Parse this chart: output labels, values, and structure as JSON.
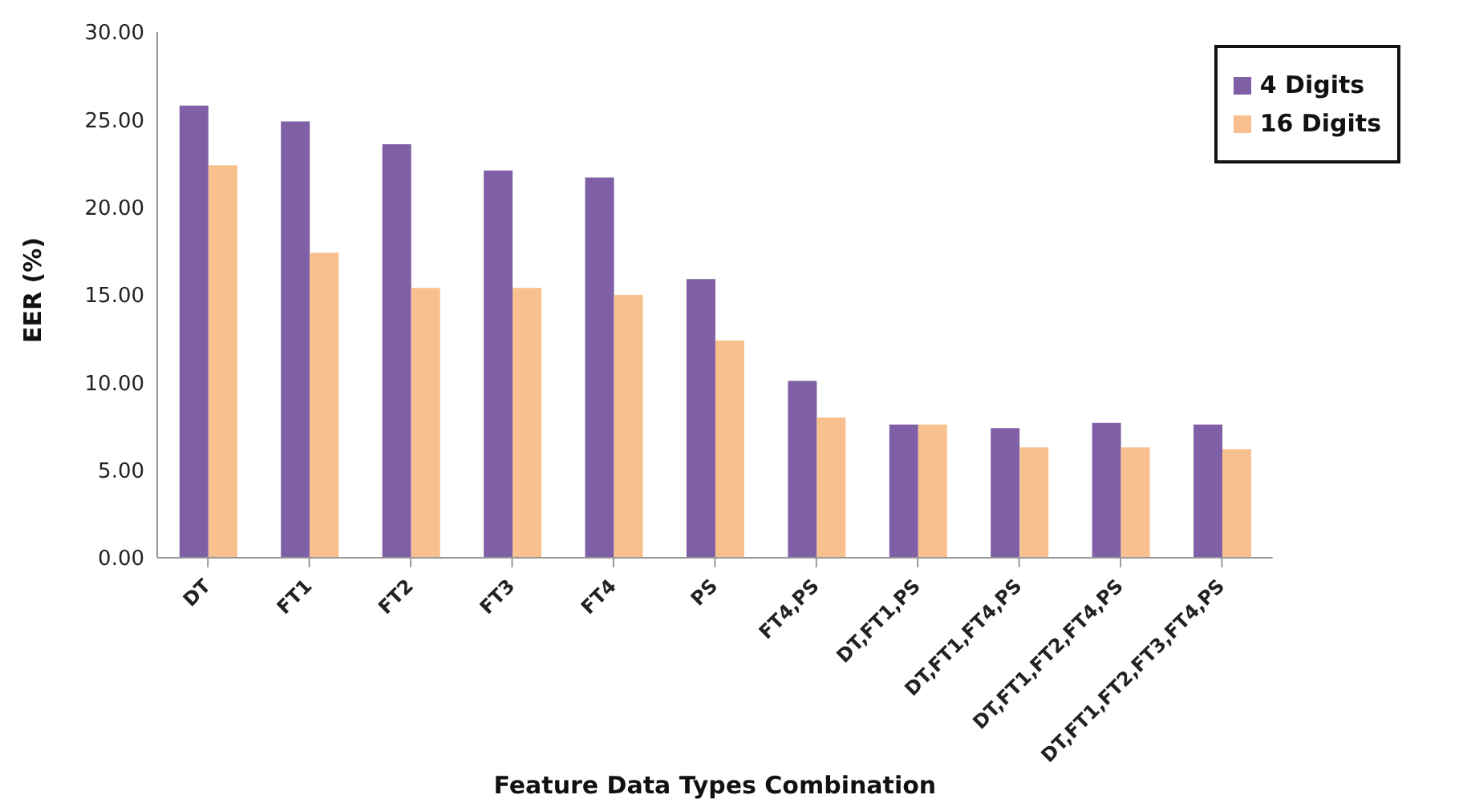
{
  "chart_data": {
    "type": "bar",
    "xlabel": "Feature Data Types Combination",
    "ylabel": "EER (%)",
    "categories": [
      "DT",
      "FT1",
      "FT2",
      "FT3",
      "FT4",
      "PS",
      "FT4,PS",
      "DT,FT1,PS",
      "DT,FT1,FT4,PS",
      "DT,FT1,FT2,FT4,PS",
      "DT,FT1,FT2,FT3,FT4,PS"
    ],
    "series": [
      {
        "name": "4 Digits",
        "color": "#7f5fa5",
        "values": [
          25.8,
          24.9,
          23.6,
          22.1,
          21.7,
          15.9,
          10.1,
          7.6,
          7.4,
          7.7,
          7.6
        ]
      },
      {
        "name": "16 Digits",
        "color": "#f8c08e",
        "values": [
          22.4,
          17.4,
          15.4,
          15.4,
          15.0,
          12.4,
          8.0,
          7.6,
          6.3,
          6.3,
          6.2
        ]
      }
    ],
    "ylim": [
      0,
      30
    ],
    "yticks": [
      {
        "value": 0,
        "label": "0.00"
      },
      {
        "value": 5,
        "label": "5.00"
      },
      {
        "value": 10,
        "label": "10.00"
      },
      {
        "value": 15,
        "label": "15.00"
      },
      {
        "value": 20,
        "label": "20.00"
      },
      {
        "value": 25,
        "label": "25.00"
      },
      {
        "value": 30,
        "label": "30.00"
      }
    ],
    "grid": false,
    "legend": "top right"
  }
}
